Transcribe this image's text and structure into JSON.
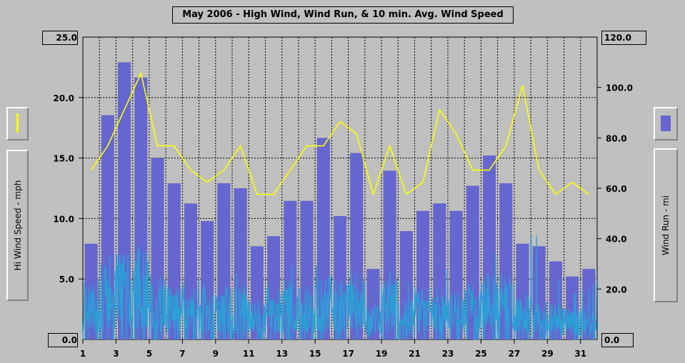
{
  "title": "May 2006 - High Wind, Wind Run, & 10 min. Avg. Wind Speed",
  "left_axis": {
    "label": "Hi Wind Speed - mph",
    "max_label": "25.0",
    "min_label": "0.0",
    "ticks": [
      "20.0",
      "15.0",
      "10.0",
      "5.0"
    ]
  },
  "right_axis": {
    "label": "Wind Run - mi",
    "max_label": "120.0",
    "min_label": "0.0",
    "ticks": [
      "100.0",
      "80.0",
      "60.0",
      "40.0",
      "20.0"
    ]
  },
  "x_ticks": [
    "1",
    "3",
    "5",
    "7",
    "9",
    "11",
    "13",
    "15",
    "17",
    "19",
    "21",
    "23",
    "25",
    "27",
    "29",
    "31"
  ],
  "colors": {
    "background": "#c0c0c0",
    "plot": "#bfbfbf",
    "bars": "#6666d0",
    "hi_wind_line": "#ffff00",
    "avg_speed": "#2b9fd6",
    "grid": "#000000"
  },
  "chart_data": {
    "type": "bar",
    "x": [
      1,
      2,
      3,
      4,
      5,
      6,
      7,
      8,
      9,
      10,
      11,
      12,
      13,
      14,
      15,
      16,
      17,
      18,
      19,
      20,
      21,
      22,
      23,
      24,
      25,
      26,
      27,
      28,
      29,
      30,
      31
    ],
    "xlim": [
      1,
      32
    ],
    "series": [
      {
        "name": "Wind Run",
        "type": "bar",
        "axis": "right",
        "ylim": [
          0,
          120
        ],
        "values": [
          38,
          89,
          110,
          104,
          72,
          62,
          54,
          47,
          62,
          60,
          37,
          41,
          55,
          55,
          80,
          49,
          74,
          28,
          67,
          43,
          51,
          54,
          51,
          61,
          73,
          62,
          38,
          37,
          31,
          25,
          28
        ]
      },
      {
        "name": "Hi Wind Speed",
        "type": "line",
        "axis": "left",
        "ylim": [
          0,
          25
        ],
        "values": [
          14,
          16,
          19,
          22,
          16,
          16,
          14,
          13,
          14,
          16,
          12,
          12,
          14,
          16,
          16,
          18,
          17,
          12,
          16,
          12,
          13,
          19,
          17,
          14,
          14,
          16,
          21,
          14,
          12,
          13,
          12
        ]
      },
      {
        "name": "10 min. Avg. Wind Speed",
        "type": "line",
        "axis": "left",
        "ylim": [
          0,
          25
        ],
        "daily_levels": [
          2.5,
          3.5,
          4.5,
          4.5,
          3.0,
          2.5,
          2.0,
          2.0,
          2.5,
          2.5,
          1.8,
          2.0,
          2.5,
          2.5,
          3.0,
          2.2,
          3.0,
          1.5,
          2.8,
          2.0,
          2.3,
          2.5,
          2.3,
          2.6,
          3.0,
          2.6,
          2.0,
          1.8,
          1.6,
          1.4,
          1.5
        ],
        "daily_peaks": [
          6,
          7,
          7,
          8,
          6,
          5,
          5,
          5,
          6,
          6,
          5,
          5,
          7,
          6,
          7,
          5,
          6,
          4,
          6,
          5,
          5,
          7,
          6,
          6,
          8,
          6,
          5,
          9,
          5,
          4,
          5
        ]
      }
    ]
  }
}
